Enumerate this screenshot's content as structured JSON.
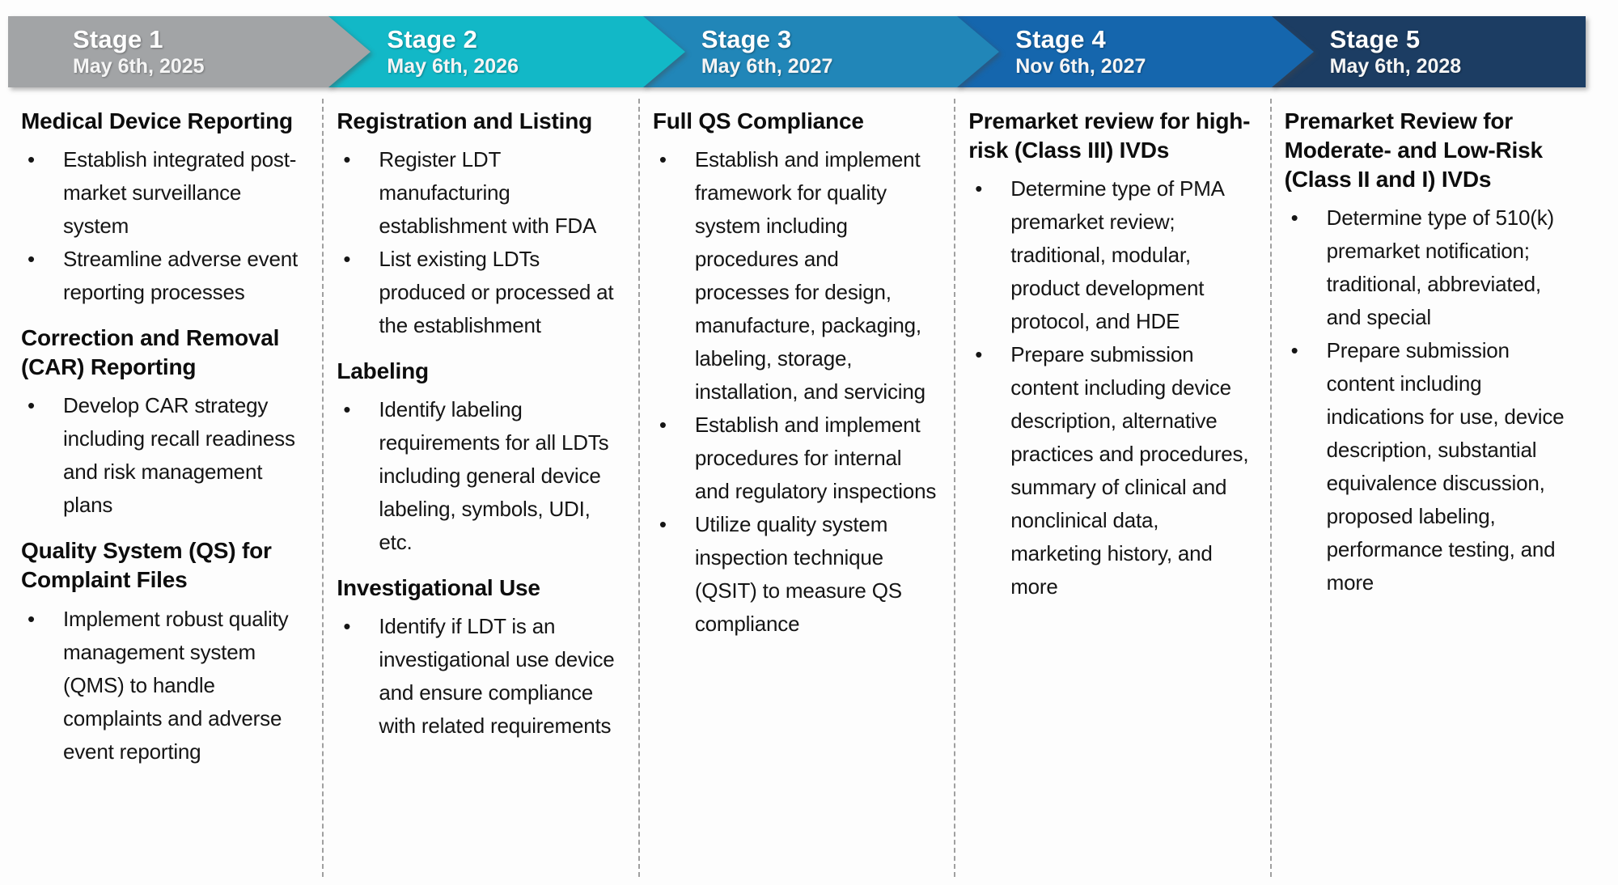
{
  "diagram": {
    "kind": "five-stage compliance timeline",
    "divider_color": "#a0a0a0",
    "text_color": "#151515"
  },
  "stages": [
    {
      "name": "Stage 1",
      "date": "May 6th, 2025",
      "color": "#a2a4a6",
      "sections": [
        {
          "heading": "Medical Device Reporting",
          "bullets": [
            "Establish integrated post-market surveillance system",
            "Streamline adverse event reporting processes"
          ]
        },
        {
          "heading": "Correction and Removal (CAR) Reporting",
          "bullets": [
            "Develop CAR strategy including recall readiness and risk management plans"
          ]
        },
        {
          "heading": "Quality System (QS) for Complaint Files",
          "bullets": [
            "Implement robust quality management system (QMS) to handle complaints and adverse event reporting"
          ]
        }
      ]
    },
    {
      "name": "Stage 2",
      "date": "May 6th, 2026",
      "color": "#12b8c7",
      "sections": [
        {
          "heading": "Registration and Listing",
          "bullets": [
            "Register LDT manufacturing establishment with FDA",
            "List existing LDTs produced or processed at the establishment"
          ]
        },
        {
          "heading": "Labeling",
          "bullets": [
            "Identify labeling requirements for all LDTs including general device labeling, symbols, UDI, etc."
          ]
        },
        {
          "heading": "Investigational Use",
          "bullets": [
            "Identify if LDT is an investigational use device and ensure compliance with related requirements"
          ]
        }
      ]
    },
    {
      "name": "Stage 3",
      "date": "May 6th, 2027",
      "color": "#2186b8",
      "sections": [
        {
          "heading": "Full QS Compliance",
          "bullets": [
            "Establish and implement framework for quality system including procedures and processes for design, manufacture, packaging, labeling, storage, installation, and servicing",
            "Establish and implement procedures for internal and regulatory inspections",
            "Utilize quality system inspection technique (QSIT) to measure QS compliance"
          ]
        }
      ]
    },
    {
      "name": "Stage 4",
      "date": "Nov 6th, 2027",
      "color": "#1566ad",
      "sections": [
        {
          "heading": "Premarket review for high-risk (Class III) IVDs",
          "bullets": [
            "Determine type of PMA premarket review; traditional, modular, product development protocol, and HDE",
            "Prepare submission content including device description, alternative practices and procedures, summary of clinical and nonclinical data, marketing history, and more"
          ]
        }
      ]
    },
    {
      "name": "Stage 5",
      "date": "May 6th, 2028",
      "color": "#1c3d63",
      "sections": [
        {
          "heading": "Premarket Review for Moderate- and Low-Risk (Class II and I) IVDs",
          "bullets": [
            "Determine type of 510(k) premarket notification; traditional, abbreviated, and special",
            "Prepare submission content including indications for use, device description, substantial equivalence discussion, proposed labeling, performance testing, and more"
          ]
        }
      ]
    }
  ]
}
